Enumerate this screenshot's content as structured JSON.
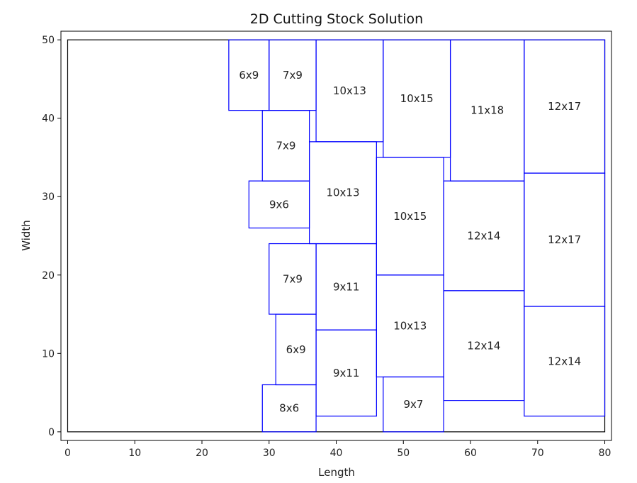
{
  "chart_data": {
    "type": "rectangles",
    "title": "2D Cutting Stock Solution",
    "xlabel": "Length",
    "ylabel": "Width",
    "xlim": [
      0,
      80
    ],
    "ylim": [
      0,
      50
    ],
    "xticks": [
      "0",
      "10",
      "20",
      "30",
      "40",
      "50",
      "60",
      "70",
      "80"
    ],
    "yticks": [
      "0",
      "10",
      "20",
      "30",
      "40",
      "50"
    ],
    "stock": {
      "x": 0,
      "y": 0,
      "w": 80,
      "h": 50
    },
    "pieces": [
      {
        "label": "6x9",
        "x": 24,
        "y": 41,
        "w": 6,
        "h": 9
      },
      {
        "label": "7x9",
        "x": 30,
        "y": 41,
        "w": 7,
        "h": 9
      },
      {
        "label": "10x13",
        "x": 37,
        "y": 37,
        "w": 10,
        "h": 13
      },
      {
        "label": "10x15",
        "x": 47,
        "y": 35,
        "w": 10,
        "h": 15
      },
      {
        "label": "11x18",
        "x": 57,
        "y": 32,
        "w": 11,
        "h": 18
      },
      {
        "label": "12x17",
        "x": 68,
        "y": 33,
        "w": 12,
        "h": 17
      },
      {
        "label": "7x9",
        "x": 29,
        "y": 32,
        "w": 7,
        "h": 9
      },
      {
        "label": "10x13",
        "x": 36,
        "y": 24,
        "w": 10,
        "h": 13
      },
      {
        "label": "9x6",
        "x": 27,
        "y": 26,
        "w": 9,
        "h": 6
      },
      {
        "label": "10x15",
        "x": 46,
        "y": 20,
        "w": 10,
        "h": 15
      },
      {
        "label": "12x14",
        "x": 56,
        "y": 18,
        "w": 12,
        "h": 14
      },
      {
        "label": "12x17",
        "x": 68,
        "y": 16,
        "w": 12,
        "h": 17
      },
      {
        "label": "7x9",
        "x": 30,
        "y": 15,
        "w": 7,
        "h": 9
      },
      {
        "label": "9x11",
        "x": 37,
        "y": 13,
        "w": 9,
        "h": 11
      },
      {
        "label": "10x13",
        "x": 46,
        "y": 7,
        "w": 10,
        "h": 13
      },
      {
        "label": "12x14",
        "x": 56,
        "y": 4,
        "w": 12,
        "h": 14
      },
      {
        "label": "12x14",
        "x": 68,
        "y": 2,
        "w": 12,
        "h": 14
      },
      {
        "label": "6x9",
        "x": 31,
        "y": 6,
        "w": 6,
        "h": 9
      },
      {
        "label": "9x11",
        "x": 37,
        "y": 2,
        "w": 9,
        "h": 11
      },
      {
        "label": "8x6",
        "x": 29,
        "y": 0,
        "w": 8,
        "h": 6
      },
      {
        "label": "9x7",
        "x": 47,
        "y": 0,
        "w": 9,
        "h": 7
      }
    ],
    "grid": false,
    "legend": "none",
    "colors": {
      "piece_edge": "#0000ff",
      "stock_edge": "#000000",
      "text": "#222222"
    }
  }
}
